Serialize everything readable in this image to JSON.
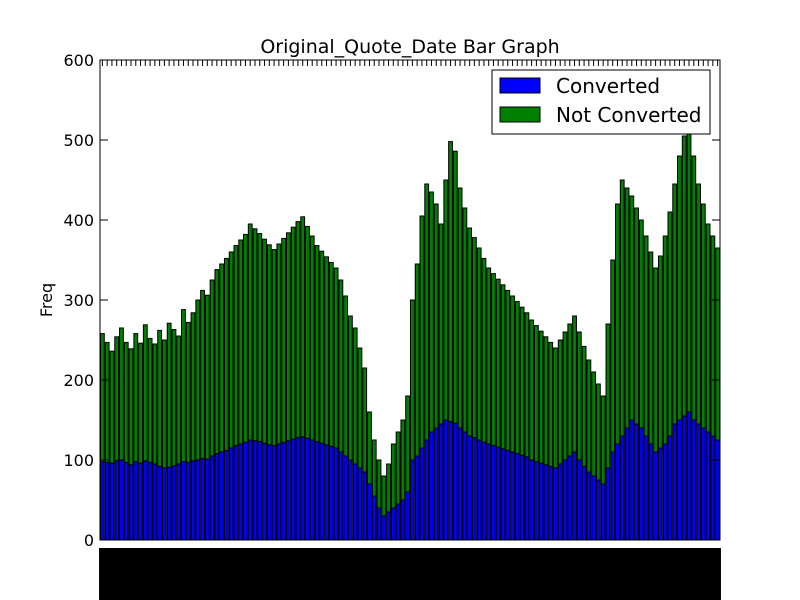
{
  "chart_data": {
    "type": "bar",
    "title": "Original_Quote_Date Bar Graph",
    "xlabel": "",
    "ylabel": "Freq",
    "ylim": [
      0,
      600
    ],
    "yticks": [
      0,
      100,
      200,
      300,
      400,
      500,
      600
    ],
    "stacked": true,
    "grid": false,
    "legend_position": "top-right",
    "series": [
      {
        "name": "Converted",
        "color": "#0000ff",
        "values": [
          98,
          97,
          96,
          99,
          100,
          97,
          94,
          98,
          96,
          99,
          97,
          95,
          92,
          90,
          91,
          93,
          95,
          98,
          97,
          99,
          100,
          102,
          101,
          105,
          108,
          110,
          112,
          115,
          118,
          120,
          122,
          125,
          124,
          123,
          121,
          119,
          118,
          120,
          122,
          124,
          126,
          128,
          129,
          127,
          125,
          123,
          121,
          119,
          117,
          115,
          110,
          105,
          100,
          95,
          90,
          85,
          70,
          55,
          40,
          30,
          35,
          40,
          45,
          50,
          60,
          100,
          105,
          115,
          125,
          135,
          140,
          145,
          150,
          148,
          146,
          140,
          135,
          130,
          128,
          125,
          122,
          120,
          118,
          116,
          114,
          112,
          110,
          108,
          106,
          104,
          100,
          98,
          96,
          94,
          92,
          90,
          95,
          100,
          105,
          110,
          100,
          92,
          85,
          80,
          75,
          70,
          90,
          110,
          120,
          130,
          140,
          150,
          145,
          140,
          130,
          120,
          110,
          115,
          120,
          130,
          145,
          150,
          155,
          160,
          150,
          145,
          140,
          135,
          130,
          125
        ]
      },
      {
        "name": "Not Converted",
        "color": "#008000",
        "values": [
          160,
          150,
          140,
          155,
          165,
          150,
          145,
          160,
          150,
          170,
          155,
          150,
          170,
          160,
          180,
          170,
          160,
          190,
          175,
          185,
          200,
          210,
          205,
          220,
          230,
          235,
          240,
          245,
          250,
          255,
          260,
          270,
          265,
          260,
          255,
          250,
          245,
          250,
          255,
          260,
          265,
          270,
          275,
          265,
          255,
          245,
          240,
          235,
          230,
          225,
          215,
          200,
          180,
          170,
          150,
          130,
          90,
          70,
          60,
          50,
          60,
          80,
          90,
          100,
          120,
          200,
          240,
          290,
          320,
          300,
          280,
          250,
          300,
          350,
          340,
          300,
          280,
          260,
          250,
          240,
          230,
          220,
          215,
          210,
          205,
          200,
          195,
          190,
          185,
          180,
          175,
          170,
          165,
          160,
          155,
          150,
          155,
          160,
          165,
          170,
          160,
          150,
          140,
          130,
          120,
          110,
          180,
          240,
          300,
          320,
          300,
          280,
          270,
          260,
          250,
          240,
          230,
          240,
          260,
          280,
          300,
          330,
          350,
          370,
          330,
          300,
          280,
          260,
          250,
          240
        ]
      }
    ]
  }
}
